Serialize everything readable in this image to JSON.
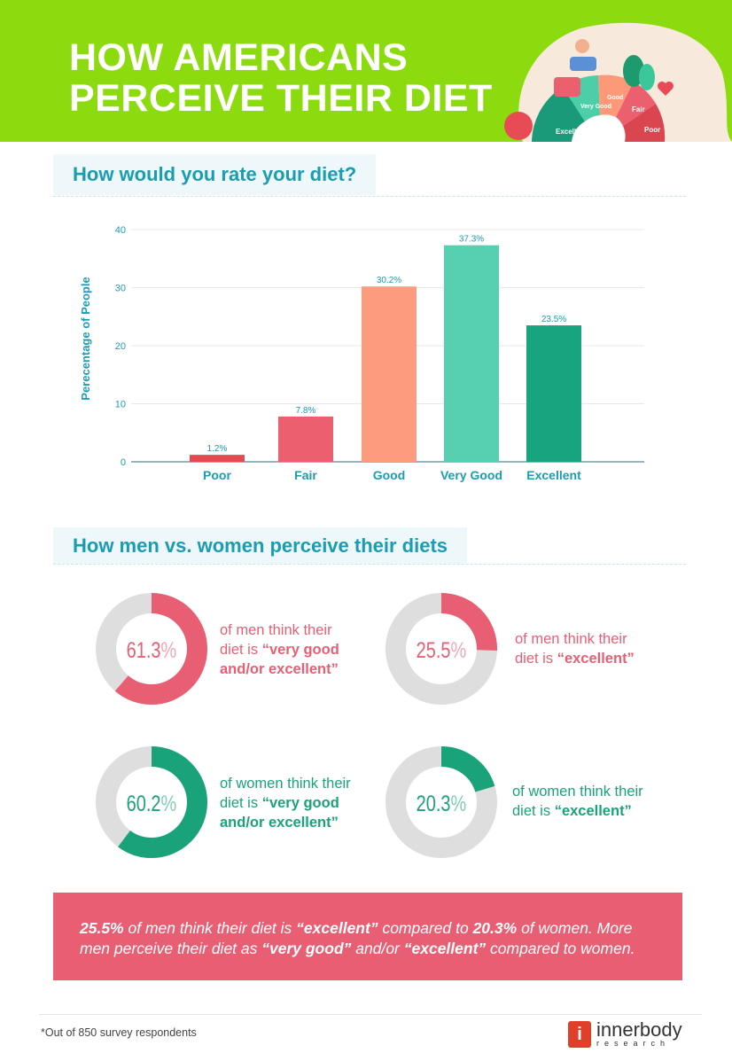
{
  "header": {
    "title_line1": "HOW AMERICANS",
    "title_line2": "PERCEIVE THEIR DIET",
    "illustration_labels": [
      "Excellent",
      "Very Good",
      "Good",
      "Fair",
      "Poor"
    ],
    "bg_color": "#8cdb0e"
  },
  "section1": {
    "title": "How would you rate your diet?"
  },
  "chart_data": {
    "type": "bar",
    "categories": [
      "Poor",
      "Fair",
      "Good",
      "Very Good",
      "Excellent"
    ],
    "values": [
      1.2,
      7.8,
      30.2,
      37.3,
      23.5
    ],
    "data_labels": [
      "1.2%",
      "7.8%",
      "30.2%",
      "37.3%",
      "23.5%"
    ],
    "colors": [
      "#e04c52",
      "#ec5f6e",
      "#fd9b7e",
      "#57d0b0",
      "#18a47e"
    ],
    "ylabel": "Perecentage of People",
    "xlabel": "",
    "ylim": [
      0,
      40
    ],
    "yticks": [
      0,
      10,
      20,
      30,
      40
    ],
    "grid": true
  },
  "section2": {
    "title": "How men vs. women perceive their diets"
  },
  "donuts": [
    {
      "value": 61.3,
      "label": "61.3",
      "pct": "%",
      "text1": "of men think their",
      "text2a": "diet is ",
      "text2b": "“very good",
      "text3": "and/or excellent”",
      "color": "#e85f74"
    },
    {
      "value": 25.5,
      "label": "25.5",
      "pct": "%",
      "text1": "of men think their",
      "text2a": "diet is ",
      "text2b": "“excellent”",
      "color": "#e85f74"
    },
    {
      "value": 60.2,
      "label": "60.2",
      "pct": "%",
      "text1": "of women think their",
      "text2a": "diet is ",
      "text2b": "“very good",
      "text3": "and/or excellent”",
      "color": "#1aa37a"
    },
    {
      "value": 20.3,
      "label": "20.3",
      "pct": "%",
      "text1": "of women think their",
      "text2a": "diet is ",
      "text2b": "“excellent”",
      "color": "#1aa37a"
    }
  ],
  "summary": {
    "p1": "25.5%",
    "p2": " of men think their diet is ",
    "p3": "“excellent”",
    "p4": " compared to ",
    "p5": "20.3%",
    "p6": " of women. More men perceive their diet as ",
    "p7": "“very good”",
    "p8": " and/or ",
    "p9": "“excellent”",
    "p10": " compared to women."
  },
  "footer": {
    "note": "*Out of 850 survey respondents",
    "logo_name": "innerbody",
    "logo_sub": "research",
    "logo_mark": "i"
  }
}
